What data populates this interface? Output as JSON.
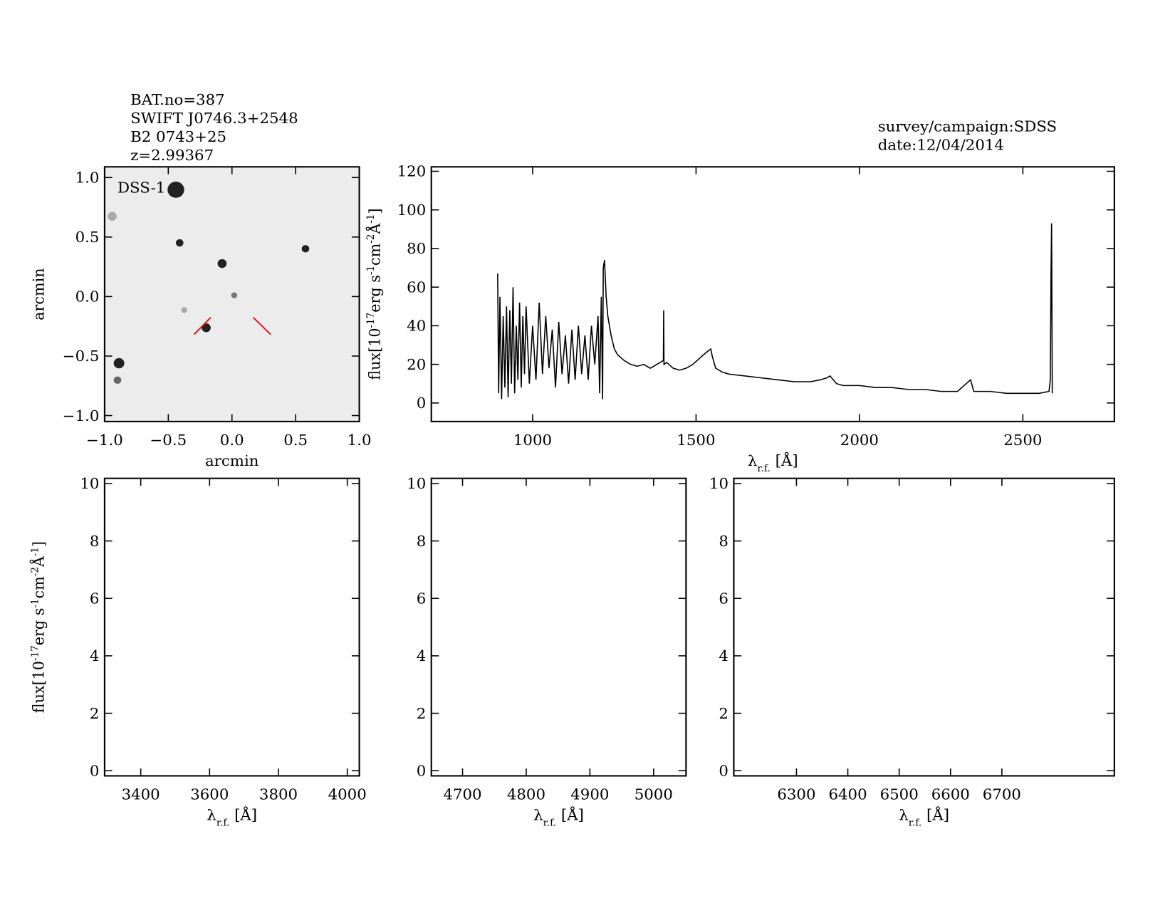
{
  "chart_data": [
    {
      "type": "image",
      "header": [
        "BAT.no=387",
        "SWIFT J0746.3+2548",
        "B2 0743+25",
        "z=2.99367"
      ],
      "annotation": "DSS-1",
      "xlabel": [
        "arcmin"
      ],
      "ylabel": [
        "arcmin"
      ],
      "xlim": [
        -1,
        1
      ],
      "ylim": [
        -1.05,
        1.09
      ],
      "xticks": [
        {
          "value": -1,
          "label": "−1.0"
        },
        {
          "value": -0.5,
          "label": "−0.5"
        },
        {
          "value": 0,
          "label": "0.0"
        },
        {
          "value": 0.5,
          "label": "0.5"
        },
        {
          "value": 1,
          "label": "1.0"
        }
      ],
      "yticks": [
        {
          "value": -1,
          "label": "−1.0"
        },
        {
          "value": -0.5,
          "label": "−0.5"
        },
        {
          "value": 0,
          "label": "0.0"
        },
        {
          "value": 0.5,
          "label": "0.5"
        },
        {
          "value": 1,
          "label": "1.0"
        }
      ]
    },
    {
      "type": "line",
      "annotations": [
        "survey/campaign:SDSS",
        "date:12/04/2014"
      ],
      "color": "#000000",
      "xlabel": [
        "λ",
        "r.f.",
        " [Å]"
      ],
      "ylabel": [
        "flux[10",
        "-17",
        "erg s",
        "-1",
        "cm",
        "-2",
        "Å",
        "-1",
        "]"
      ],
      "xlim": [
        690,
        2780
      ],
      "ylim": [
        -9.6,
        122.3
      ],
      "xticks": [
        1000,
        1500,
        2000,
        2500
      ],
      "yticks": [
        0,
        20,
        40,
        60,
        80,
        100,
        120
      ],
      "x": [
        893,
        896,
        900,
        905,
        910,
        915,
        920,
        925,
        930,
        935,
        940,
        945,
        950,
        955,
        960,
        965,
        970,
        975,
        980,
        990,
        1000,
        1010,
        1020,
        1030,
        1040,
        1050,
        1060,
        1070,
        1080,
        1090,
        1100,
        1110,
        1120,
        1130,
        1140,
        1150,
        1160,
        1170,
        1180,
        1190,
        1200,
        1205,
        1210,
        1214,
        1216,
        1220,
        1225,
        1230,
        1240,
        1250,
        1260,
        1280,
        1300,
        1320,
        1340,
        1360,
        1380,
        1400,
        1401,
        1402,
        1410,
        1430,
        1450,
        1470,
        1490,
        1510,
        1530,
        1545,
        1550,
        1560,
        1580,
        1600,
        1650,
        1700,
        1750,
        1800,
        1850,
        1880,
        1900,
        1910,
        1930,
        1950,
        2000,
        2050,
        2100,
        2150,
        2200,
        2250,
        2300,
        2340,
        2350,
        2400,
        2450,
        2500,
        2550,
        2580,
        2584,
        2586,
        2588,
        2590
      ],
      "values": [
        67,
        5,
        55,
        2,
        45,
        8,
        50,
        3,
        48,
        10,
        60,
        5,
        40,
        12,
        52,
        8,
        45,
        15,
        50,
        10,
        40,
        12,
        52,
        15,
        45,
        18,
        38,
        8,
        42,
        15,
        35,
        10,
        38,
        12,
        40,
        15,
        35,
        12,
        40,
        20,
        45,
        5,
        55,
        2,
        70,
        74,
        55,
        45,
        35,
        28,
        25,
        22,
        20,
        19,
        20,
        18,
        20,
        22,
        48,
        20,
        21,
        18,
        17,
        18,
        20,
        23,
        26,
        28,
        24,
        18,
        16,
        15,
        14,
        13,
        12,
        11,
        11,
        12,
        13,
        14,
        10,
        9,
        9,
        8,
        8,
        7,
        7,
        6,
        6,
        12,
        6,
        6,
        5,
        5,
        5,
        6,
        12,
        65,
        93,
        5
      ]
    },
    {
      "type": "empty",
      "xlabel": [
        "λ",
        "r.f.",
        " [Å]"
      ],
      "ylabel": [
        "flux[10",
        "-17",
        "erg s",
        "-1",
        "cm",
        "-2",
        "Å",
        "-1",
        "]"
      ],
      "xlim": [
        3295,
        4035
      ],
      "ylim": [
        -0.18,
        10.18
      ],
      "xticks": [
        3400,
        3600,
        3800,
        4000
      ],
      "yticks": [
        0,
        2,
        4,
        6,
        8,
        10
      ]
    },
    {
      "type": "empty",
      "xlabel": [
        "λ",
        "r.f.",
        " [Å]"
      ],
      "xlim": [
        4651,
        5051
      ],
      "ylim": [
        -0.18,
        10.18
      ],
      "xticks": [
        4700,
        4800,
        4900,
        5000
      ],
      "yticks": [
        0,
        2,
        4,
        6,
        8,
        10
      ]
    },
    {
      "type": "empty",
      "xlabel": [
        "λ",
        "r.f.",
        " [Å]"
      ],
      "xlim": [
        6178,
        6919
      ],
      "ylim": [
        -0.18,
        10.18
      ],
      "xticks": [
        6300,
        6400,
        6500,
        6600,
        6700
      ],
      "yticks": [
        0,
        2,
        4,
        6,
        8,
        10
      ]
    }
  ]
}
